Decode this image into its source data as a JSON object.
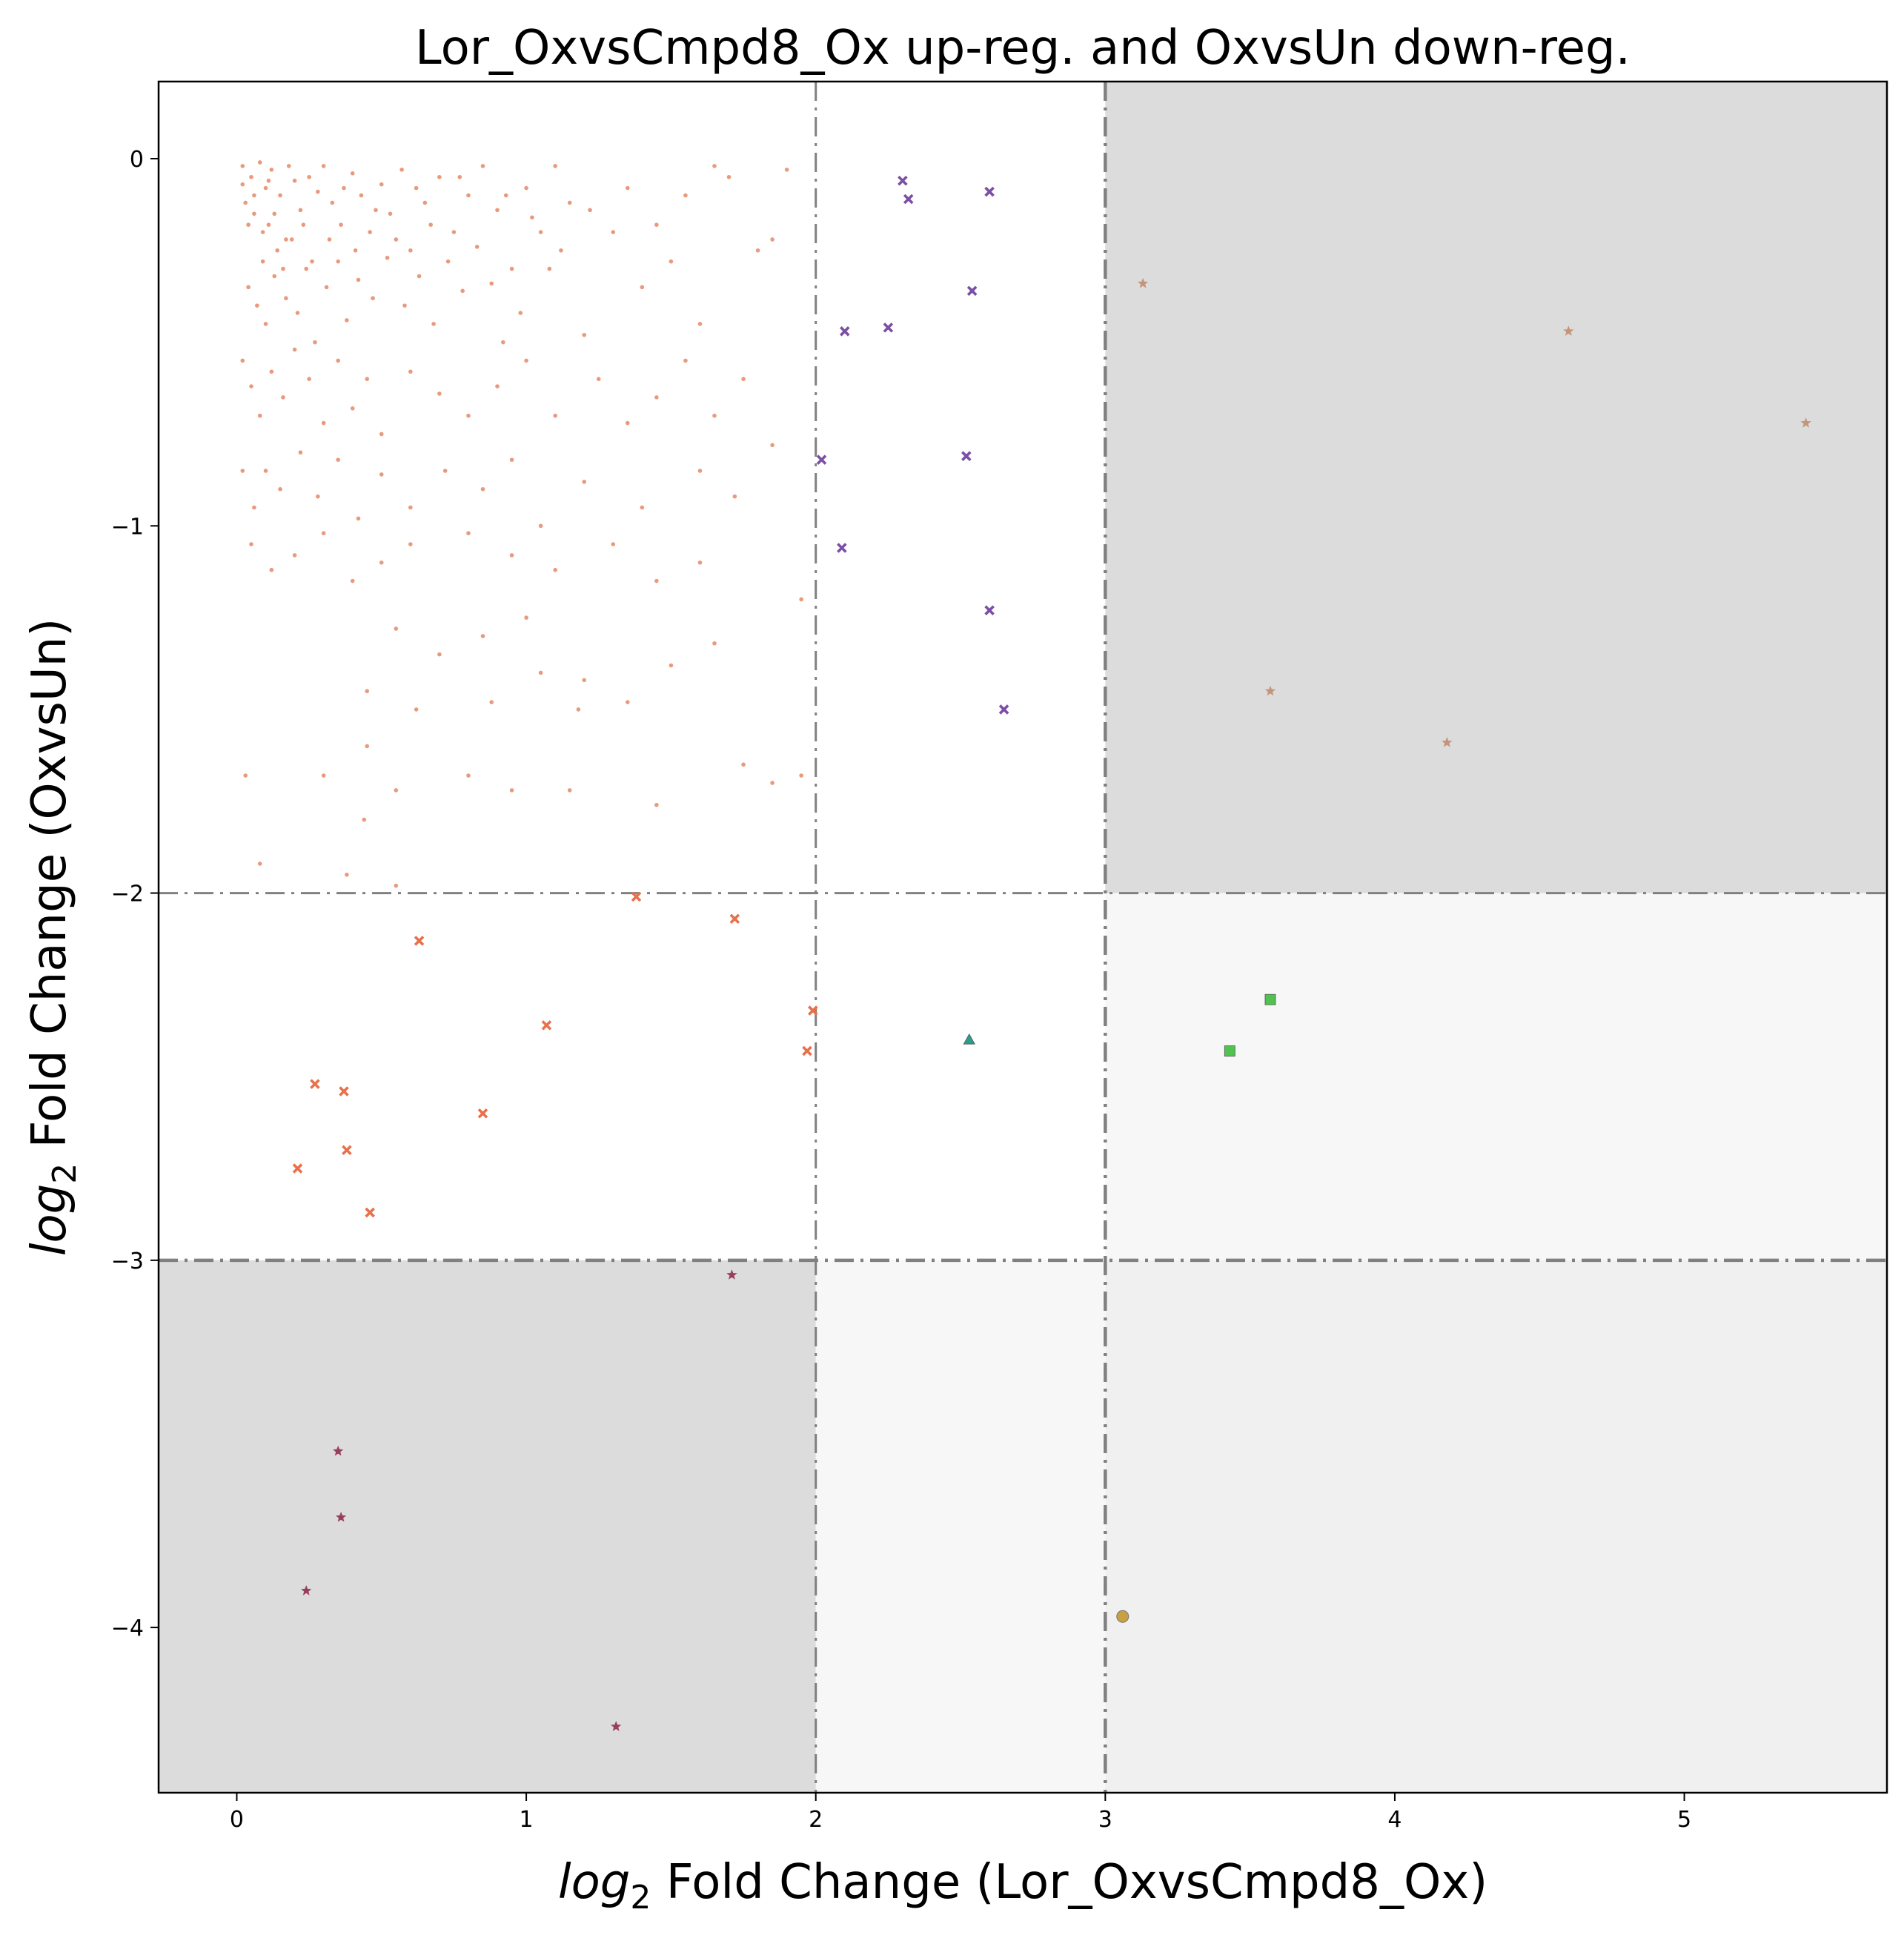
{
  "chart_data": {
    "type": "scatter",
    "title": "Lor_OxvsCmpd8_Ox up-reg. and OxvsUn down-reg.",
    "xlabel": {
      "prefix": "log",
      "sub": "2",
      "text": " Fold Change (Lor_OxvsCmpd8_Ox)"
    },
    "ylabel": {
      "prefix": "log",
      "sub": "2",
      "text": " Fold Change (OxvsUn)"
    },
    "xlim": [
      -0.27,
      5.7
    ],
    "ylim": [
      -4.45,
      0.21
    ],
    "xticks": [
      0,
      1,
      2,
      3,
      4,
      5
    ],
    "yticks": [
      0,
      -1,
      -2,
      -3,
      -4
    ],
    "xtick_labels": [
      "0",
      "1",
      "2",
      "3",
      "4",
      "5"
    ],
    "ytick_labels": [
      "0",
      "−1",
      "−2",
      "−3",
      "−4"
    ],
    "thresholds": {
      "x": [
        2,
        3
      ],
      "y": [
        -2,
        -3
      ]
    },
    "regions": [
      {
        "x": [
          3,
          5.7
        ],
        "y": [
          -2,
          0.21
        ],
        "color": "#dcdcdc"
      },
      {
        "x": [
          -0.27,
          2
        ],
        "y": [
          -4.45,
          -3
        ],
        "color": "#dcdcdc"
      },
      {
        "x": [
          3,
          5.7
        ],
        "y": [
          -3,
          -2
        ],
        "color": "#f7f7f7"
      },
      {
        "x": [
          2,
          3
        ],
        "y": [
          -4.45,
          -3
        ],
        "color": "#f7f7f7"
      },
      {
        "x": [
          3,
          5.7
        ],
        "y": [
          -4.45,
          -3
        ],
        "color": "#f0f0f0"
      }
    ],
    "grid": false,
    "legend": "none",
    "series": [
      {
        "marker": "dot",
        "color": "#e07850",
        "points": [
          [
            0.02,
            -0.02
          ],
          [
            0.05,
            -0.05
          ],
          [
            0.08,
            -0.01
          ],
          [
            0.1,
            -0.08
          ],
          [
            0.12,
            -0.03
          ],
          [
            0.15,
            -0.1
          ],
          [
            0.18,
            -0.02
          ],
          [
            0.2,
            -0.06
          ],
          [
            0.03,
            -0.12
          ],
          [
            0.06,
            -0.15
          ],
          [
            0.09,
            -0.2
          ],
          [
            0.11,
            -0.18
          ],
          [
            0.14,
            -0.25
          ],
          [
            0.16,
            -0.3
          ],
          [
            0.19,
            -0.22
          ],
          [
            0.22,
            -0.14
          ],
          [
            0.25,
            -0.05
          ],
          [
            0.28,
            -0.09
          ],
          [
            0.3,
            -0.02
          ],
          [
            0.33,
            -0.12
          ],
          [
            0.36,
            -0.18
          ],
          [
            0.4,
            -0.04
          ],
          [
            0.43,
            -0.1
          ],
          [
            0.46,
            -0.2
          ],
          [
            0.5,
            -0.07
          ],
          [
            0.53,
            -0.15
          ],
          [
            0.57,
            -0.03
          ],
          [
            0.6,
            -0.25
          ],
          [
            0.65,
            -0.12
          ],
          [
            0.7,
            -0.05
          ],
          [
            0.75,
            -0.2
          ],
          [
            0.8,
            -0.1
          ],
          [
            0.85,
            -0.02
          ],
          [
            0.9,
            -0.14
          ],
          [
            0.95,
            -0.3
          ],
          [
            1.0,
            -0.08
          ],
          [
            1.05,
            -0.2
          ],
          [
            1.1,
            -0.02
          ],
          [
            1.15,
            -0.12
          ],
          [
            0.04,
            -0.35
          ],
          [
            0.07,
            -0.4
          ],
          [
            0.1,
            -0.45
          ],
          [
            0.13,
            -0.32
          ],
          [
            0.17,
            -0.38
          ],
          [
            0.21,
            -0.42
          ],
          [
            0.24,
            -0.3
          ],
          [
            0.27,
            -0.5
          ],
          [
            0.31,
            -0.35
          ],
          [
            0.35,
            -0.28
          ],
          [
            0.38,
            -0.44
          ],
          [
            0.42,
            -0.33
          ],
          [
            0.47,
            -0.38
          ],
          [
            0.52,
            -0.27
          ],
          [
            0.58,
            -0.4
          ],
          [
            0.63,
            -0.32
          ],
          [
            0.68,
            -0.45
          ],
          [
            0.73,
            -0.28
          ],
          [
            0.78,
            -0.36
          ],
          [
            0.88,
            -0.34
          ],
          [
            0.92,
            -0.5
          ],
          [
            0.98,
            -0.42
          ],
          [
            1.08,
            -0.3
          ],
          [
            1.2,
            -0.48
          ],
          [
            1.3,
            -0.2
          ],
          [
            1.4,
            -0.35
          ],
          [
            1.5,
            -0.28
          ],
          [
            1.6,
            -0.45
          ],
          [
            1.7,
            -0.05
          ],
          [
            1.8,
            -0.25
          ],
          [
            1.9,
            -0.03
          ],
          [
            0.02,
            -0.55
          ],
          [
            0.05,
            -0.62
          ],
          [
            0.08,
            -0.7
          ],
          [
            0.12,
            -0.58
          ],
          [
            0.16,
            -0.65
          ],
          [
            0.2,
            -0.52
          ],
          [
            0.25,
            -0.6
          ],
          [
            0.3,
            -0.72
          ],
          [
            0.35,
            -0.55
          ],
          [
            0.4,
            -0.68
          ],
          [
            0.45,
            -0.6
          ],
          [
            0.5,
            -0.75
          ],
          [
            0.6,
            -0.58
          ],
          [
            0.7,
            -0.64
          ],
          [
            0.8,
            -0.7
          ],
          [
            0.9,
            -0.62
          ],
          [
            1.0,
            -0.55
          ],
          [
            1.1,
            -0.7
          ],
          [
            1.25,
            -0.6
          ],
          [
            1.35,
            -0.72
          ],
          [
            1.45,
            -0.65
          ],
          [
            1.55,
            -0.55
          ],
          [
            1.65,
            -0.7
          ],
          [
            1.75,
            -0.6
          ],
          [
            1.85,
            -0.78
          ],
          [
            0.02,
            -0.85
          ],
          [
            0.06,
            -0.95
          ],
          [
            0.1,
            -0.85
          ],
          [
            0.15,
            -0.9
          ],
          [
            0.22,
            -0.8
          ],
          [
            0.28,
            -0.92
          ],
          [
            0.35,
            -0.82
          ],
          [
            0.42,
            -0.98
          ],
          [
            0.5,
            -0.86
          ],
          [
            0.6,
            -0.95
          ],
          [
            0.72,
            -0.85
          ],
          [
            0.85,
            -0.9
          ],
          [
            0.95,
            -0.82
          ],
          [
            1.05,
            -1.0
          ],
          [
            1.2,
            -0.88
          ],
          [
            1.4,
            -0.95
          ],
          [
            1.6,
            -0.85
          ],
          [
            1.72,
            -0.92
          ],
          [
            0.05,
            -1.05
          ],
          [
            0.12,
            -1.12
          ],
          [
            0.2,
            -1.08
          ],
          [
            0.3,
            -1.02
          ],
          [
            0.4,
            -1.15
          ],
          [
            0.5,
            -1.1
          ],
          [
            0.6,
            -1.05
          ],
          [
            0.8,
            -1.02
          ],
          [
            0.95,
            -1.08
          ],
          [
            1.1,
            -1.12
          ],
          [
            1.3,
            -1.05
          ],
          [
            1.45,
            -1.15
          ],
          [
            1.6,
            -1.1
          ],
          [
            1.95,
            -1.2
          ],
          [
            0.55,
            -1.28
          ],
          [
            0.7,
            -1.35
          ],
          [
            0.85,
            -1.3
          ],
          [
            1.0,
            -1.25
          ],
          [
            1.2,
            -1.42
          ],
          [
            1.35,
            -1.48
          ],
          [
            1.5,
            -1.38
          ],
          [
            1.65,
            -1.32
          ],
          [
            0.45,
            -1.45
          ],
          [
            0.62,
            -1.5
          ],
          [
            0.88,
            -1.48
          ],
          [
            1.05,
            -1.4
          ],
          [
            1.18,
            -1.5
          ],
          [
            0.03,
            -1.68
          ],
          [
            0.3,
            -1.68
          ],
          [
            0.45,
            -1.6
          ],
          [
            0.55,
            -1.72
          ],
          [
            0.8,
            -1.68
          ],
          [
            0.95,
            -1.72
          ],
          [
            1.15,
            -1.72
          ],
          [
            1.45,
            -1.76
          ],
          [
            1.75,
            -1.65
          ],
          [
            1.85,
            -1.7
          ],
          [
            1.95,
            -1.68
          ],
          [
            0.08,
            -1.92
          ],
          [
            0.38,
            -1.95
          ],
          [
            0.55,
            -1.98
          ],
          [
            0.44,
            -1.8
          ],
          [
            0.02,
            -0.07
          ],
          [
            0.04,
            -0.18
          ],
          [
            0.06,
            -0.1
          ],
          [
            0.09,
            -0.28
          ],
          [
            0.11,
            -0.06
          ],
          [
            0.13,
            -0.15
          ],
          [
            0.17,
            -0.22
          ],
          [
            0.23,
            -0.18
          ],
          [
            0.26,
            -0.28
          ],
          [
            0.32,
            -0.22
          ],
          [
            0.37,
            -0.08
          ],
          [
            0.41,
            -0.25
          ],
          [
            0.48,
            -0.14
          ],
          [
            0.55,
            -0.22
          ],
          [
            0.62,
            -0.08
          ],
          [
            0.67,
            -0.18
          ],
          [
            0.77,
            -0.05
          ],
          [
            0.83,
            -0.24
          ],
          [
            0.93,
            -0.1
          ],
          [
            1.02,
            -0.16
          ],
          [
            1.12,
            -0.25
          ],
          [
            1.22,
            -0.14
          ],
          [
            1.35,
            -0.08
          ],
          [
            1.45,
            -0.18
          ],
          [
            1.55,
            -0.1
          ],
          [
            1.65,
            -0.02
          ],
          [
            1.85,
            -0.22
          ]
        ]
      },
      {
        "marker": "x",
        "color": "#7b4fa6",
        "points": [
          [
            2.3,
            -0.06
          ],
          [
            2.32,
            -0.11
          ],
          [
            2.6,
            -0.09
          ],
          [
            2.1,
            -0.47
          ],
          [
            2.25,
            -0.46
          ],
          [
            2.54,
            -0.36
          ],
          [
            2.52,
            -0.81
          ],
          [
            2.02,
            -0.82
          ],
          [
            2.09,
            -1.06
          ],
          [
            2.6,
            -1.23
          ],
          [
            2.65,
            -1.5
          ]
        ]
      },
      {
        "marker": "x",
        "color": "#e8704a",
        "points": [
          [
            1.38,
            -2.01
          ],
          [
            1.72,
            -2.07
          ],
          [
            0.63,
            -2.13
          ],
          [
            1.07,
            -2.36
          ],
          [
            1.99,
            -2.32
          ],
          [
            1.97,
            -2.43
          ],
          [
            0.27,
            -2.52
          ],
          [
            0.37,
            -2.54
          ],
          [
            0.85,
            -2.6
          ],
          [
            0.38,
            -2.7
          ],
          [
            0.21,
            -2.75
          ],
          [
            0.46,
            -2.87
          ]
        ]
      },
      {
        "marker": "star",
        "color": "#c4957a",
        "points": [
          [
            3.13,
            -0.34
          ],
          [
            4.6,
            -0.47
          ],
          [
            5.42,
            -0.72
          ],
          [
            3.57,
            -1.45
          ],
          [
            4.18,
            -1.59
          ]
        ]
      },
      {
        "marker": "star",
        "color": "#9a3d5c",
        "points": [
          [
            1.71,
            -3.04
          ],
          [
            0.35,
            -3.52
          ],
          [
            0.36,
            -3.7
          ],
          [
            0.24,
            -3.9
          ],
          [
            1.31,
            -4.27
          ]
        ]
      },
      {
        "marker": "triangle",
        "color": "#2a9d8f",
        "points": [
          [
            2.53,
            -2.4
          ]
        ]
      },
      {
        "marker": "square",
        "color": "#4fc24f",
        "points": [
          [
            3.57,
            -2.29
          ],
          [
            3.43,
            -2.43
          ]
        ]
      },
      {
        "marker": "circle",
        "color": "#c8a040",
        "points": [
          [
            3.06,
            -3.97
          ]
        ]
      }
    ]
  }
}
